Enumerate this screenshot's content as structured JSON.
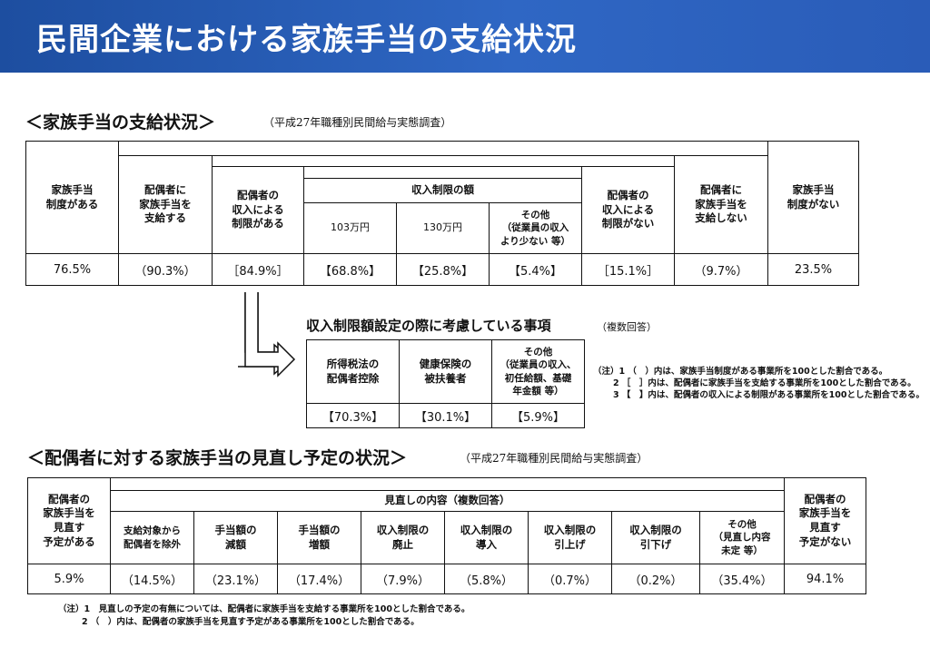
{
  "banner": {
    "title": "民間企業における家族手当の支給状況"
  },
  "section1": {
    "title": "＜家族手当の支給状況＞",
    "source": "（平成27年職種別民間給与実態調査）",
    "headers": {
      "has_allowance": "家族手当\n制度がある",
      "pays_spouse": "配偶者に\n家族手当を\n支給する",
      "income_limit_yes": "配偶者の\n収入による\n制限がある",
      "limit_amount": "収入制限の額",
      "limit_103": "103万円",
      "limit_130": "130万円",
      "limit_other": "その他\n（従業員の収入\nより少ない 等）",
      "income_limit_no": "配偶者の\n収入による\n制限がない",
      "no_spouse_pay": "配偶者に\n家族手当を\n支給しない",
      "no_allowance": "家族手当\n制度がない"
    },
    "values": {
      "has_allowance": "76.5%",
      "pays_spouse": "（90.3%）",
      "income_limit_yes": "［84.9%］",
      "limit_103": "【68.8%】",
      "limit_130": "【25.8%】",
      "limit_other": "【5.4%】",
      "income_limit_no": "［15.1%］",
      "no_spouse_pay": "（9.7%）",
      "no_allowance": "23.5%"
    }
  },
  "considerations": {
    "title": "収入制限額設定の際に考慮している事項",
    "note": "（複数回答）",
    "headers": {
      "tax": "所得税法の\n配偶者控除",
      "insurance": "健康保険の\n被扶養者",
      "other": "その他\n（従業員の収入、\n初任給額、基礎\n年金額 等）"
    },
    "values": {
      "tax": "【70.3%】",
      "insurance": "【30.1%】",
      "other": "【5.9%】"
    }
  },
  "notes1": [
    "（注）1 （　）内は、家族手当制度がある事業所を100とした割合である。",
    "2 ［　］内は、配偶者に家族手当を支給する事業所を100とした割合である。",
    "3 【　】内は、配偶者の収入による制限がある事業所を100とした割合である。"
  ],
  "section2": {
    "title": "＜配偶者に対する家族手当の見直し予定の状況＞",
    "source": "（平成27年職種別民間給与実態調査）",
    "headers": {
      "planned": "配偶者の\n家族手当を\n見直す\n予定がある",
      "content": "見直しの内容（複数回答）",
      "exclude": "支給対象から\n配偶者を除外",
      "reduce": "手当額の\n減額",
      "increase": "手当額の\n増額",
      "abolish": "収入制限の\n廃止",
      "introduce": "収入制限の\n導入",
      "raise": "収入制限の\n引上げ",
      "lower": "収入制限の\n引下げ",
      "other": "その他\n（見直し内容\n未定 等）",
      "not_planned": "配偶者の\n家族手当を\n見直す\n予定がない"
    },
    "values": {
      "planned": "5.9%",
      "exclude": "（14.5%）",
      "reduce": "（23.1%）",
      "increase": "（17.4%）",
      "abolish": "（7.9%）",
      "introduce": "（5.8%）",
      "raise": "（0.7%）",
      "lower": "（0.2%）",
      "other": "（35.4%）",
      "not_planned": "94.1%"
    }
  },
  "notes2": [
    "（注）1　見直しの予定の有無については、配偶者に家族手当を支給する事業所を100とした割合である。",
    "2 （　）内は、配偶者の家族手当を見直す予定がある事業所を100とした割合である。"
  ]
}
